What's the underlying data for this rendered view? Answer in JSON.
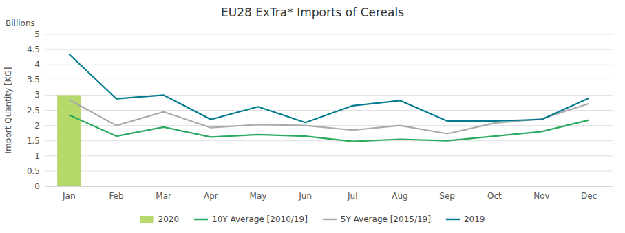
{
  "chart_data": {
    "type": "bar",
    "title": "EU28 ExTra* Imports of Cereals",
    "y_label": "Import Quantity [KG]",
    "annotations": [
      "Billions"
    ],
    "categories": [
      "Jan",
      "Feb",
      "Mar",
      "Apr",
      "May",
      "Jun",
      "Jul",
      "Aug",
      "Sep",
      "Oct",
      "Nov",
      "Dec"
    ],
    "series": [
      {
        "name": "2020",
        "type": "bar",
        "color": "#b5d96a",
        "values": [
          3.0,
          null,
          null,
          null,
          null,
          null,
          null,
          null,
          null,
          null,
          null,
          null
        ]
      },
      {
        "name": "10Y Average [2010/19]",
        "type": "line",
        "color": "#2aaa5e",
        "values": [
          2.35,
          1.65,
          1.95,
          1.62,
          1.7,
          1.65,
          1.48,
          1.55,
          1.5,
          1.65,
          1.8,
          2.18
        ]
      },
      {
        "name": "5Y Average [2015/19]",
        "type": "line",
        "color": "#aaaaaa",
        "values": [
          2.85,
          2.0,
          2.45,
          1.93,
          2.03,
          2.0,
          1.85,
          2.0,
          1.73,
          2.08,
          2.22,
          2.72
        ]
      },
      {
        "name": "2019",
        "type": "line",
        "color": "#007b8e",
        "values": [
          4.35,
          2.88,
          3.0,
          2.2,
          2.62,
          2.1,
          2.65,
          2.82,
          2.15,
          2.15,
          2.2,
          2.9
        ]
      }
    ],
    "ylim": [
      0,
      5
    ],
    "yticks": [
      0,
      0.5,
      1,
      1.5,
      2,
      2.5,
      3,
      3.5,
      4,
      4.5,
      5
    ],
    "grid": true,
    "legend": "bottom"
  }
}
